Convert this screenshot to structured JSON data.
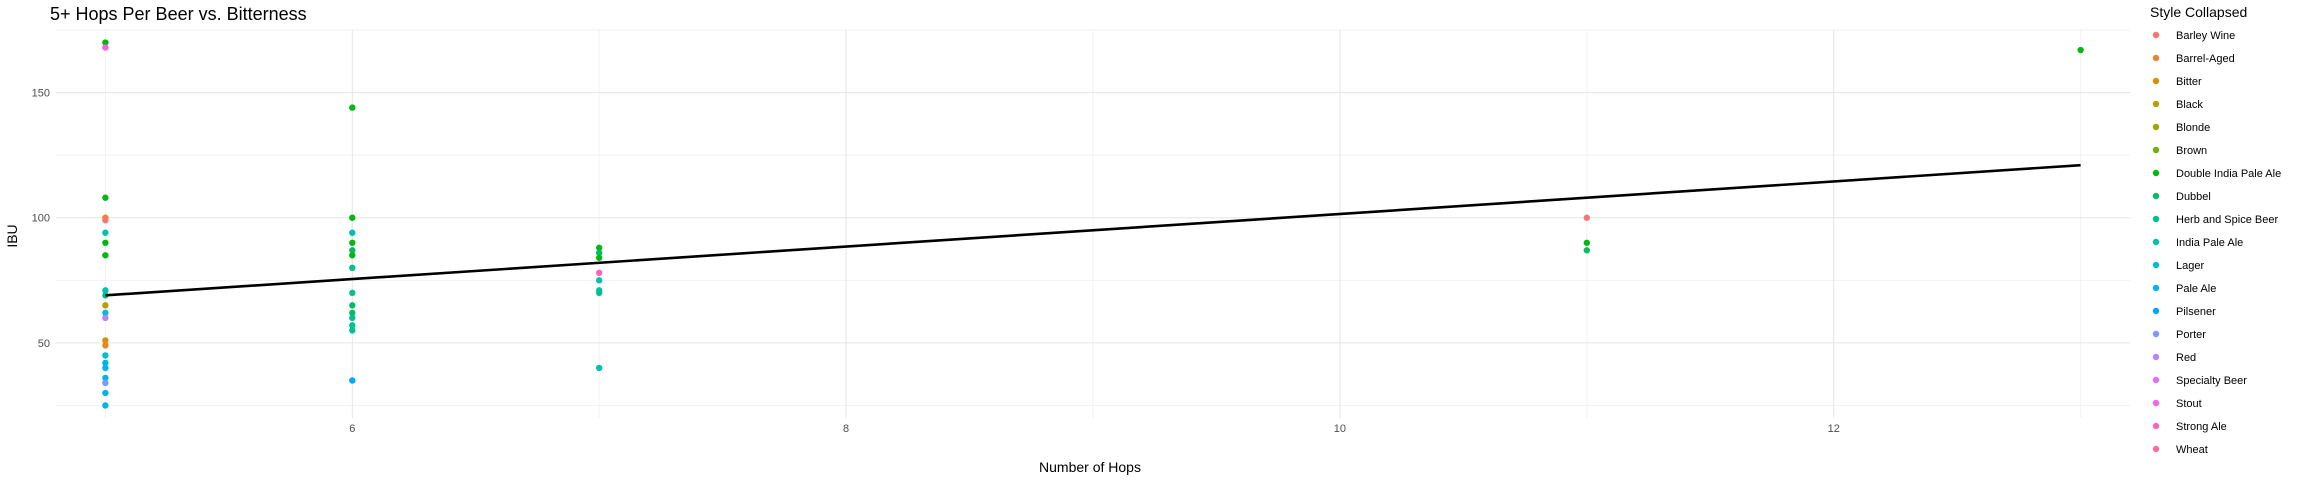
{
  "chart_data": {
    "type": "scatter",
    "title": "5+ Hops Per Beer vs. Bitterness",
    "xlabel": "Number of Hops",
    "ylabel": "IBU",
    "xlim": [
      4.8,
      13.2
    ],
    "ylim": [
      20,
      175
    ],
    "x_ticks": [
      6,
      8,
      10,
      12
    ],
    "y_ticks": [
      50,
      100,
      150
    ],
    "grid": true,
    "legend": {
      "title": "Style Collapsed",
      "position": "right",
      "entries": [
        {
          "name": "Barley Wine",
          "color": "#F8766D"
        },
        {
          "name": "Barrel-Aged",
          "color": "#E9842C"
        },
        {
          "name": "Bitter",
          "color": "#D69100"
        },
        {
          "name": "Black",
          "color": "#BC9D00"
        },
        {
          "name": "Blonde",
          "color": "#9CA700"
        },
        {
          "name": "Brown",
          "color": "#6FB000"
        },
        {
          "name": "Double India Pale Ale",
          "color": "#00B813"
        },
        {
          "name": "Dubbel",
          "color": "#00BD61"
        },
        {
          "name": "Herb and Spice Beer",
          "color": "#00C08E"
        },
        {
          "name": "India Pale Ale",
          "color": "#00C0B4"
        },
        {
          "name": "Lager",
          "color": "#00BDD4"
        },
        {
          "name": "Pale Ale",
          "color": "#00B5EE"
        },
        {
          "name": "Pilsener",
          "color": "#00A7FF"
        },
        {
          "name": "Porter",
          "color": "#7F96FF"
        },
        {
          "name": "Red",
          "color": "#BC81FF"
        },
        {
          "name": "Specialty Beer",
          "color": "#E26EF7"
        },
        {
          "name": "Stout",
          "color": "#F863DF"
        },
        {
          "name": "Strong Ale",
          "color": "#FF62BF"
        },
        {
          "name": "Wheat",
          "color": "#FF6A9A"
        }
      ]
    },
    "points": [
      {
        "x": 5,
        "y": 170,
        "style": "Double India Pale Ale"
      },
      {
        "x": 5,
        "y": 168,
        "style": "Stout"
      },
      {
        "x": 5,
        "y": 108,
        "style": "Double India Pale Ale"
      },
      {
        "x": 5,
        "y": 100,
        "style": "Barrel-Aged"
      },
      {
        "x": 5,
        "y": 99,
        "style": "Barley Wine"
      },
      {
        "x": 5,
        "y": 94,
        "style": "India Pale Ale"
      },
      {
        "x": 5,
        "y": 90,
        "style": "Double India Pale Ale"
      },
      {
        "x": 5,
        "y": 85,
        "style": "Double India Pale Ale"
      },
      {
        "x": 5,
        "y": 71,
        "style": "India Pale Ale"
      },
      {
        "x": 5,
        "y": 69,
        "style": "Herb and Spice Beer"
      },
      {
        "x": 5,
        "y": 65,
        "style": "Black"
      },
      {
        "x": 5,
        "y": 62,
        "style": "Lager"
      },
      {
        "x": 5,
        "y": 60,
        "style": "Red"
      },
      {
        "x": 5,
        "y": 51,
        "style": "Bitter"
      },
      {
        "x": 5,
        "y": 49,
        "style": "Barrel-Aged"
      },
      {
        "x": 5,
        "y": 45,
        "style": "Lager"
      },
      {
        "x": 5,
        "y": 42,
        "style": "Pale Ale"
      },
      {
        "x": 5,
        "y": 40,
        "style": "Pale Ale"
      },
      {
        "x": 5,
        "y": 36,
        "style": "Pale Ale"
      },
      {
        "x": 5,
        "y": 34,
        "style": "Porter"
      },
      {
        "x": 5,
        "y": 30,
        "style": "Pale Ale"
      },
      {
        "x": 5,
        "y": 25,
        "style": "Pale Ale"
      },
      {
        "x": 6,
        "y": 144,
        "style": "Double India Pale Ale"
      },
      {
        "x": 6,
        "y": 100,
        "style": "Double India Pale Ale"
      },
      {
        "x": 6,
        "y": 94,
        "style": "India Pale Ale"
      },
      {
        "x": 6,
        "y": 90,
        "style": "Double India Pale Ale"
      },
      {
        "x": 6,
        "y": 87,
        "style": "Dubbel"
      },
      {
        "x": 6,
        "y": 85,
        "style": "Double India Pale Ale"
      },
      {
        "x": 6,
        "y": 80,
        "style": "Herb and Spice Beer"
      },
      {
        "x": 6,
        "y": 70,
        "style": "Herb and Spice Beer"
      },
      {
        "x": 6,
        "y": 65,
        "style": "Dubbel"
      },
      {
        "x": 6,
        "y": 62,
        "style": "Dubbel"
      },
      {
        "x": 6,
        "y": 60,
        "style": "Herb and Spice Beer"
      },
      {
        "x": 6,
        "y": 57,
        "style": "Herb and Spice Beer"
      },
      {
        "x": 6,
        "y": 55,
        "style": "Herb and Spice Beer"
      },
      {
        "x": 6,
        "y": 35,
        "style": "Pilsener"
      },
      {
        "x": 7,
        "y": 88,
        "style": "Double India Pale Ale"
      },
      {
        "x": 7,
        "y": 86,
        "style": "Dubbel"
      },
      {
        "x": 7,
        "y": 84,
        "style": "Double India Pale Ale"
      },
      {
        "x": 7,
        "y": 78,
        "style": "Strong Ale"
      },
      {
        "x": 7,
        "y": 75,
        "style": "India Pale Ale"
      },
      {
        "x": 7,
        "y": 71,
        "style": "India Pale Ale"
      },
      {
        "x": 7,
        "y": 70,
        "style": "Herb and Spice Beer"
      },
      {
        "x": 7,
        "y": 40,
        "style": "India Pale Ale"
      },
      {
        "x": 11,
        "y": 100,
        "style": "Barley Wine"
      },
      {
        "x": 11,
        "y": 90,
        "style": "Double India Pale Ale"
      },
      {
        "x": 11,
        "y": 87,
        "style": "Dubbel"
      },
      {
        "x": 13,
        "y": 167,
        "style": "Double India Pale Ale"
      }
    ],
    "trend_line": {
      "x": [
        5,
        13
      ],
      "y": [
        69,
        121
      ]
    }
  }
}
